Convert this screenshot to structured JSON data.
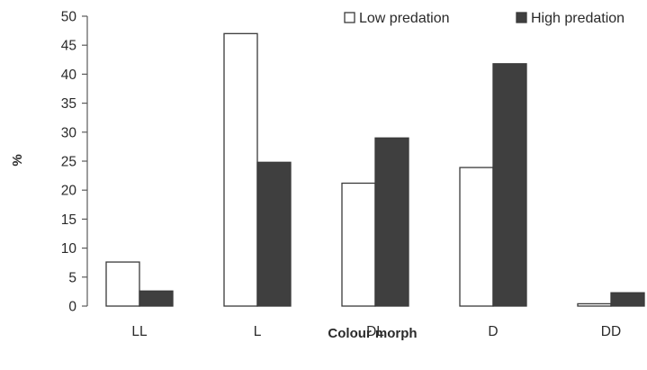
{
  "chart_data": {
    "type": "bar",
    "categories": [
      "LL",
      "L",
      "DL",
      "D",
      "DD"
    ],
    "series": [
      {
        "name": "Low predation",
        "values": [
          7.6,
          47,
          21.2,
          23.9,
          0.4
        ],
        "color": "#ffffff"
      },
      {
        "name": "High predation",
        "values": [
          2.6,
          24.8,
          29,
          41.8,
          2.3
        ],
        "color": "#3f3f3f"
      }
    ],
    "title": "",
    "xlabel": "Colour morph",
    "ylabel": "%",
    "ylim": [
      0,
      50
    ],
    "yticks": [
      0,
      5,
      10,
      15,
      20,
      25,
      30,
      35,
      40,
      45,
      50
    ],
    "grid": false,
    "legend_position": "top-right"
  }
}
